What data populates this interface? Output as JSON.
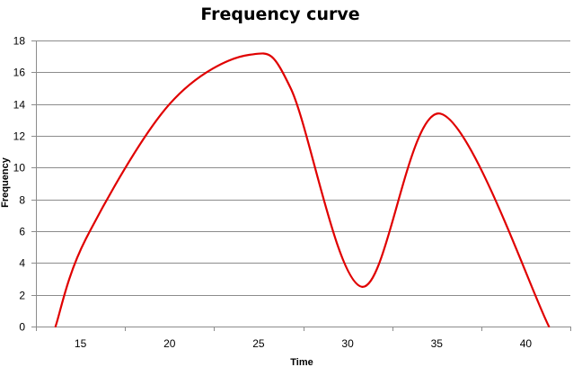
{
  "chart_data": {
    "type": "line",
    "title": "Frequency curve",
    "xlabel": "Time",
    "ylabel": "Frequency",
    "xlim": [
      12.5,
      42.5
    ],
    "ylim": [
      0,
      18
    ],
    "x_ticks": [
      "15",
      "20",
      "25",
      "30",
      "35",
      "40"
    ],
    "x_tick_values": [
      15,
      20,
      25,
      30,
      35,
      40
    ],
    "y_ticks": [
      "0",
      "2",
      "4",
      "6",
      "8",
      "10",
      "12",
      "14",
      "16",
      "18"
    ],
    "y_tick_values": [
      0,
      2,
      4,
      6,
      8,
      10,
      12,
      14,
      16,
      18
    ],
    "grid": true,
    "legend": "none",
    "series": [
      {
        "color": "#e00000",
        "smooth": true,
        "x": [
          13.6,
          15.3,
          20.0,
          24.5,
          26.8,
          30.8,
          35.2,
          41.3
        ],
        "y": [
          0,
          5.5,
          14,
          17.1,
          15,
          2.5,
          13.4,
          0
        ]
      }
    ]
  }
}
